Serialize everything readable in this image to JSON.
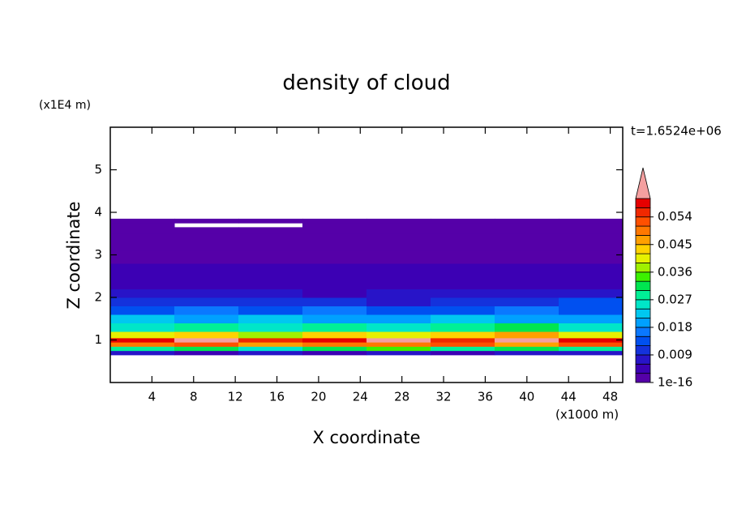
{
  "chart_data": {
    "type": "contour",
    "title": "density of cloud",
    "x_label": "X coordinate",
    "y_label": "Z coordinate",
    "x_unit_label": "(x1000 m)",
    "y_unit_label": "(x1E4 m)",
    "annotation": "t=1.6524e+06",
    "xlim": [
      0,
      49.2
    ],
    "ylim": [
      0,
      6
    ],
    "xticks": [
      4,
      8,
      12,
      16,
      20,
      24,
      28,
      32,
      36,
      40,
      44,
      48
    ],
    "yticks": [
      1,
      2,
      3,
      4,
      5
    ],
    "x_bins": [
      0,
      6.15,
      12.3,
      18.45,
      24.6,
      30.75,
      36.9,
      43.05,
      49.2
    ],
    "z_bins": [
      0.65,
      0.75,
      0.85,
      0.95,
      1.05,
      1.2,
      1.4,
      1.6,
      1.8,
      2.0,
      2.2,
      2.5,
      2.8,
      3.1,
      3.5,
      3.65,
      3.75,
      3.85
    ],
    "values": [
      [
        0.006,
        0.005,
        0.007,
        0.005,
        0.006,
        0.005,
        0.007,
        0.006
      ],
      [
        0.028,
        0.032,
        0.026,
        0.03,
        0.034,
        0.029,
        0.031,
        0.027
      ],
      [
        0.048,
        0.052,
        0.046,
        0.05,
        0.049,
        0.053,
        0.047,
        0.051
      ],
      [
        0.057,
        0.062,
        0.055,
        0.058,
        0.063,
        0.056,
        0.061,
        0.057
      ],
      [
        0.041,
        0.044,
        0.038,
        0.043,
        0.04,
        0.042,
        0.045,
        0.039
      ],
      [
        0.026,
        0.029,
        0.024,
        0.028,
        0.025,
        0.027,
        0.03,
        0.026
      ],
      [
        0.021,
        0.019,
        0.023,
        0.02,
        0.018,
        0.022,
        0.02,
        0.019
      ],
      [
        0.014,
        0.016,
        0.013,
        0.015,
        0.012,
        0.014,
        0.016,
        0.013
      ],
      [
        0.01,
        0.011,
        0.009,
        0.01,
        0.008,
        0.009,
        0.011,
        0.012
      ],
      [
        0.007,
        0.006,
        0.008,
        0.005,
        0.006,
        0.007,
        0.006,
        0.008
      ],
      [
        0.004,
        0.005,
        0.004,
        0.0045,
        0.004,
        0.0042,
        0.005,
        0.004
      ],
      [
        0.0035,
        0.004,
        0.0032,
        0.0036,
        0.0034,
        0.0031,
        0.0038,
        0.0042
      ],
      [
        0.002,
        0.0022,
        0.0018,
        0.002,
        0.0021,
        0.0019,
        0.002,
        0.0023
      ],
      [
        0.0015,
        0.0016,
        0.0014,
        0.0015,
        0.0013,
        0.0015,
        0.0016,
        0.0014
      ],
      [
        0.001,
        0.0012,
        0.0011,
        0.001,
        0.0009,
        0.001,
        0.0011,
        0.0012
      ],
      [
        0.0008,
        null,
        null,
        0.0009,
        0.0008,
        0.0009,
        0.0008,
        0.0009
      ],
      [
        0.0006,
        0.0007,
        0.0006,
        0.0005,
        0.0006,
        0.0007,
        0.0006,
        0.0007
      ]
    ],
    "colorbar": {
      "levels": [
        1e-16,
        0.003,
        0.006,
        0.009,
        0.012,
        0.015,
        0.018,
        0.021,
        0.024,
        0.027,
        0.03,
        0.033,
        0.036,
        0.039,
        0.042,
        0.045,
        0.048,
        0.051,
        0.054,
        0.057,
        0.06
      ],
      "colors": [
        "#5500a8",
        "#3c00b4",
        "#2814c8",
        "#1432dc",
        "#0050f0",
        "#0a78ff",
        "#00a0ff",
        "#00c8f0",
        "#00e6c8",
        "#00f096",
        "#00e650",
        "#3cf000",
        "#a0f000",
        "#e6f000",
        "#ffd200",
        "#ffa000",
        "#ff7800",
        "#ff5000",
        "#f02800",
        "#e60000"
      ],
      "ticks": [
        1e-16,
        0.009,
        0.018,
        0.027,
        0.036,
        0.045,
        0.054
      ],
      "extend_color": "#f4a0a0"
    }
  }
}
